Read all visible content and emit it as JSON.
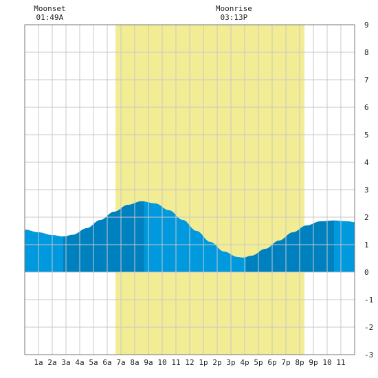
{
  "chart_data": {
    "type": "area",
    "title": "",
    "xlabel": "",
    "ylabel": "",
    "x_tick_labels": [
      "1a",
      "2a",
      "3a",
      "4a",
      "5a",
      "6a",
      "7a",
      "8a",
      "9a",
      "10",
      "11",
      "12",
      "1p",
      "2p",
      "3p",
      "4p",
      "5p",
      "6p",
      "7p",
      "8p",
      "9p",
      "10",
      "11"
    ],
    "x_range_hours": [
      0,
      24
    ],
    "ylim": [
      -3,
      9
    ],
    "y_ticks": [
      -3,
      -2,
      -1,
      0,
      1,
      2,
      3,
      4,
      5,
      6,
      7,
      8,
      9
    ],
    "grid": true,
    "daylight": {
      "start_hour": 6.6,
      "end_hour": 20.35,
      "color": "#f2ec94"
    },
    "annotations": [
      {
        "name": "Moonset",
        "time": "01:49A",
        "hour": 1.82
      },
      {
        "name": "Moonrise",
        "time": "03:13P",
        "hour": 15.22
      }
    ],
    "tide_series": {
      "hours": [
        0,
        1,
        2,
        2.8,
        3.5,
        4.5,
        5.5,
        6.5,
        7.5,
        8.5,
        9.5,
        10.5,
        11.5,
        12.5,
        13.5,
        14.5,
        15.5,
        15.9,
        16.5,
        17.5,
        18.5,
        19.5,
        20.5,
        21.5,
        22.5,
        23.5,
        24
      ],
      "values": [
        1.55,
        1.45,
        1.35,
        1.3,
        1.36,
        1.6,
        1.9,
        2.2,
        2.45,
        2.58,
        2.5,
        2.25,
        1.9,
        1.5,
        1.1,
        0.75,
        0.55,
        0.53,
        0.6,
        0.85,
        1.15,
        1.45,
        1.7,
        1.85,
        1.88,
        1.85,
        1.82
      ]
    },
    "tide_segments": [
      {
        "start_hour": 0,
        "end_hour": 2.8,
        "color": "#0099dd"
      },
      {
        "start_hour": 2.8,
        "end_hour": 8.7,
        "color": "#0081bf"
      },
      {
        "start_hour": 8.7,
        "end_hour": 16.1,
        "color": "#0099dd"
      },
      {
        "start_hour": 16.1,
        "end_hour": 22.5,
        "color": "#0081bf"
      },
      {
        "start_hour": 22.5,
        "end_hour": 24,
        "color": "#0099dd"
      }
    ],
    "grid_color": "#c8c8c8"
  }
}
